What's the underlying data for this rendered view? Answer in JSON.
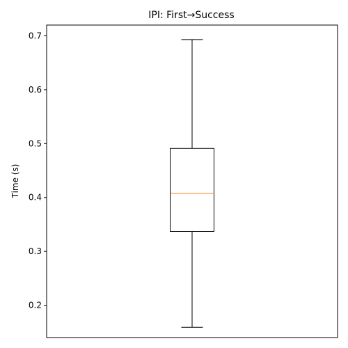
{
  "chart_data": {
    "type": "box",
    "title": "IPI: First→Success",
    "xlabel": "",
    "ylabel": "Time (s)",
    "ylim": [
      0.14,
      0.72
    ],
    "yticks": [
      0.2,
      0.3,
      0.4,
      0.5,
      0.6,
      0.7
    ],
    "ytick_labels": [
      "0.2",
      "0.3",
      "0.4",
      "0.5",
      "0.6",
      "0.7"
    ],
    "grid": false,
    "series": [
      {
        "whisker_low": 0.159,
        "q1": 0.337,
        "median": 0.408,
        "q3": 0.491,
        "whisker_high": 0.693
      }
    ],
    "colors": {
      "box": "#000000",
      "median": "#ff7f0e",
      "axes": "#000000"
    }
  }
}
